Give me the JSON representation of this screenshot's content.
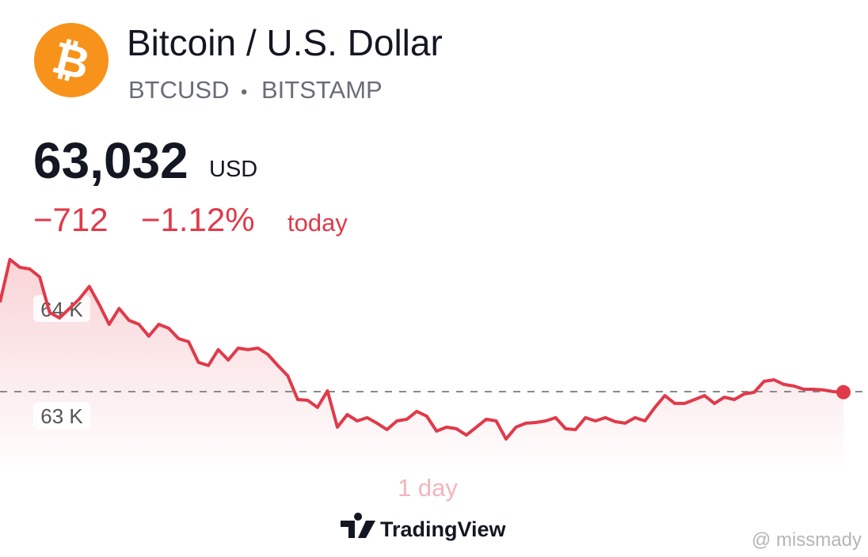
{
  "header": {
    "title": "Bitcoin / U.S. Dollar",
    "symbol": "BTCUSD",
    "separator": "•",
    "exchange": "BITSTAMP"
  },
  "quote": {
    "price": "63,032",
    "currency": "USD",
    "change": "−712",
    "change_percent": "−1.12%",
    "period": "today"
  },
  "chart_data": {
    "type": "line",
    "color": "#e03a4a",
    "values": [
      63874,
      64274,
      64200,
      64185,
      64111,
      63778,
      63726,
      63815,
      63904,
      64022,
      63852,
      63667,
      63815,
      63704,
      63667,
      63556,
      63667,
      63630,
      63533,
      63504,
      63311,
      63281,
      63430,
      63333,
      63444,
      63430,
      63444,
      63385,
      63281,
      63185,
      62963,
      62956,
      62889,
      63044,
      62704,
      62822,
      62763,
      62793,
      62741,
      62681,
      62763,
      62778,
      62852,
      62807,
      62667,
      62704,
      62689,
      62630,
      62704,
      62778,
      62763,
      62593,
      62704,
      62741,
      62748,
      62763,
      62793,
      62689,
      62681,
      62793,
      62763,
      62793,
      62756,
      62741,
      62793,
      62763,
      62889,
      63000,
      62926,
      62926,
      62963,
      63000,
      62926,
      62985,
      62963,
      63015,
      63030,
      63133,
      63148,
      63104,
      63089,
      63059,
      63059,
      63052,
      63037,
      63032
    ],
    "ylim": [
      62259,
      64481
    ],
    "yticks": [
      {
        "value": 64000,
        "label": "64 K"
      },
      {
        "value": 63000,
        "label": "63 K"
      }
    ],
    "reference_line": 63037,
    "x_label": "1 day"
  },
  "branding": "TradingView",
  "watermark": "@ missmady"
}
